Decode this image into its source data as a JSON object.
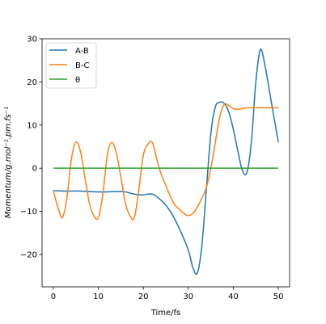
{
  "chart_data": {
    "type": "line",
    "title": "",
    "xlabel": "Time/fs",
    "ylabel": "Momentum/g.mol⁻¹.pm.fs⁻¹",
    "xlim": [
      -2.5,
      52.5
    ],
    "ylim": [
      -27.5,
      30
    ],
    "xticks": [
      0,
      10,
      20,
      30,
      40,
      50
    ],
    "yticks": [
      -20,
      -10,
      0,
      10,
      20,
      30
    ],
    "grid": false,
    "legend_position": "top-left",
    "series": [
      {
        "name": "A-B",
        "color": "#1f77b4",
        "x": [
          0,
          2,
          4,
          6,
          8,
          10,
          12,
          14,
          16,
          18,
          20,
          22,
          24,
          26,
          28,
          30,
          31,
          32,
          33,
          34,
          35,
          36,
          37,
          38,
          39,
          40,
          41,
          42,
          43,
          44,
          45,
          46,
          47,
          48,
          49,
          50
        ],
        "y": [
          -5.2,
          -5.3,
          -5.3,
          -5.3,
          -5.4,
          -5.5,
          -5.5,
          -5.4,
          -5.5,
          -6.0,
          -6.2,
          -6.0,
          -7.5,
          -10.0,
          -14.0,
          -19.0,
          -23.0,
          -24.3,
          -18.0,
          -5.0,
          8.0,
          14.2,
          15.3,
          15.0,
          13.0,
          9.0,
          4.0,
          -0.5,
          -1.0,
          6.0,
          20.0,
          27.5,
          24.0,
          18.0,
          12.0,
          6.0
        ]
      },
      {
        "name": "B-C",
        "color": "#ff7f0e",
        "x": [
          0,
          1,
          2,
          3,
          4,
          5,
          6,
          7,
          8,
          9,
          10,
          11,
          12,
          13,
          14,
          15,
          16,
          17,
          18,
          19,
          20,
          21,
          22,
          23,
          24,
          25,
          26,
          27,
          28,
          29,
          30,
          31,
          32,
          33,
          34,
          35,
          36,
          37,
          38,
          39,
          40,
          41,
          42,
          43,
          44,
          45,
          46,
          47,
          48,
          49,
          50
        ],
        "y": [
          -5.2,
          -9.0,
          -11.5,
          -7.0,
          2.0,
          6.0,
          4.0,
          -2.0,
          -8.0,
          -11.0,
          -11.5,
          -6.0,
          3.0,
          6.0,
          3.5,
          -2.0,
          -8.0,
          -11.0,
          -11.5,
          -5.0,
          3.0,
          5.5,
          6.0,
          2.0,
          -1.5,
          -4.0,
          -6.5,
          -8.5,
          -9.5,
          -10.5,
          -11.0,
          -10.5,
          -9.0,
          -7.0,
          -4.5,
          0.0,
          6.0,
          12.0,
          14.8,
          14.5,
          13.8,
          13.7,
          13.8,
          14.0,
          14.0,
          14.0,
          14.0,
          14.0,
          14.0,
          14.0,
          14.0
        ]
      },
      {
        "name": "θ",
        "color": "#2ca02c",
        "x": [
          0,
          50
        ],
        "y": [
          0,
          0
        ]
      }
    ]
  }
}
